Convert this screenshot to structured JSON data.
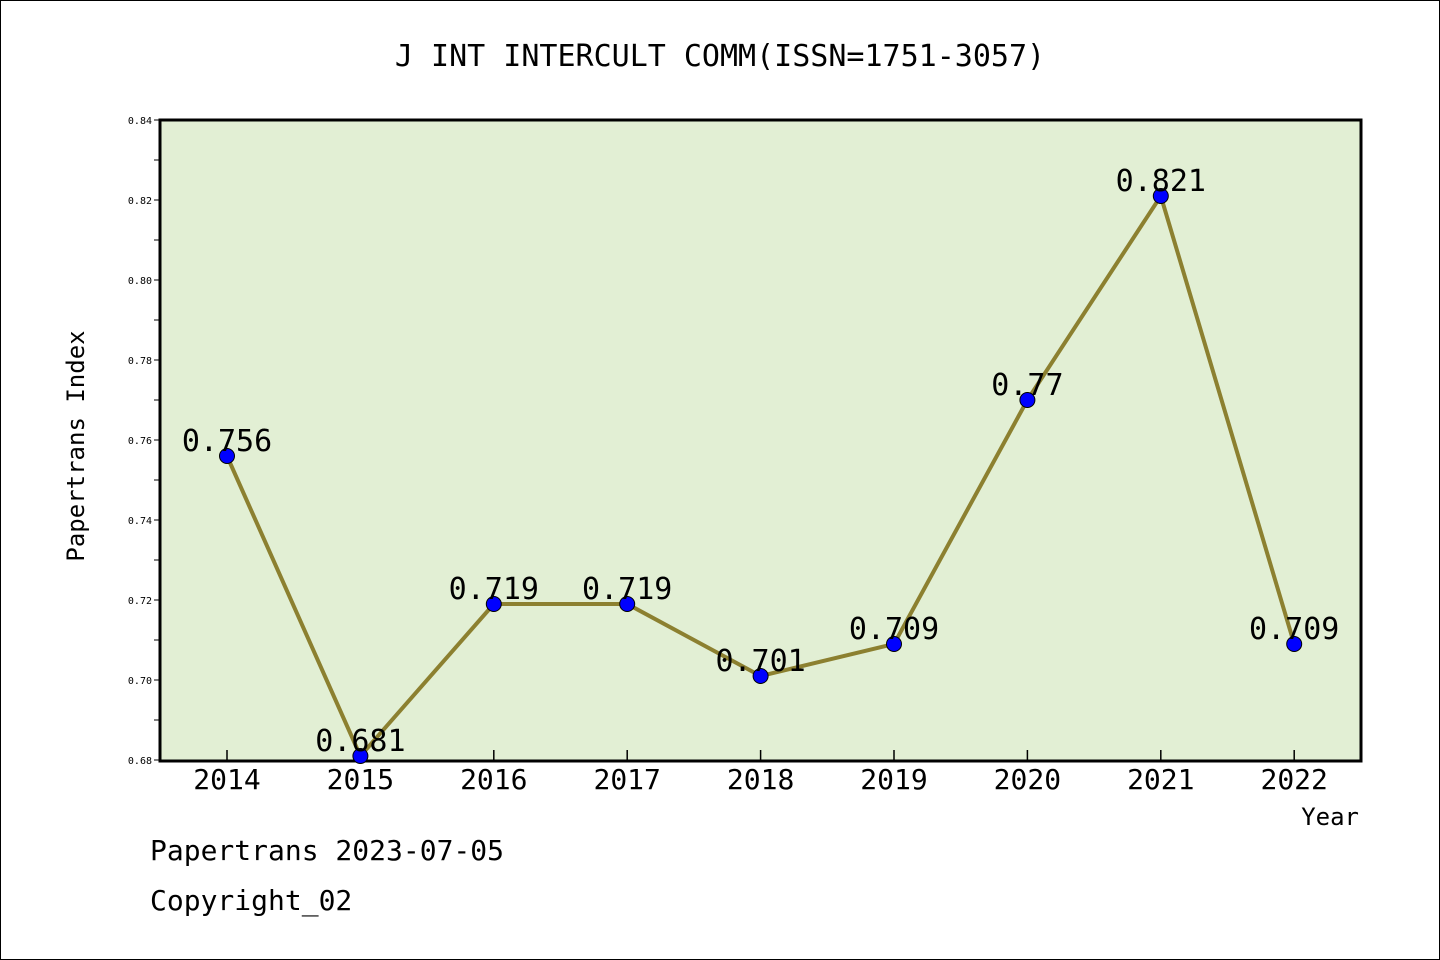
{
  "chart_data": {
    "type": "line",
    "title": "J INT INTERCULT COMM(ISSN=1751-3057)",
    "xlabel": "Year",
    "ylabel": "Papertrans Index",
    "categories": [
      "2014",
      "2015",
      "2016",
      "2017",
      "2018",
      "2019",
      "2020",
      "2021",
      "2022"
    ],
    "values": [
      0.756,
      0.681,
      0.719,
      0.719,
      0.701,
      0.709,
      0.77,
      0.821,
      0.709
    ],
    "data_labels": [
      "0.756",
      "0.681",
      "0.719",
      "0.719",
      "0.701",
      "0.709",
      "0.77",
      "0.821",
      "0.709"
    ],
    "ylim": [
      0.68,
      0.84
    ],
    "yticks": [
      "0.68",
      "0.70",
      "0.72",
      "0.74",
      "0.76",
      "0.78",
      "0.80",
      "0.82",
      "0.84"
    ],
    "grid": false,
    "colors": {
      "plot_background": "#e2efd4",
      "line": "#8c8030",
      "marker": "#0000ff"
    }
  },
  "footer": {
    "line1": "Papertrans 2023-07-05",
    "line2": "Copyright_02"
  }
}
